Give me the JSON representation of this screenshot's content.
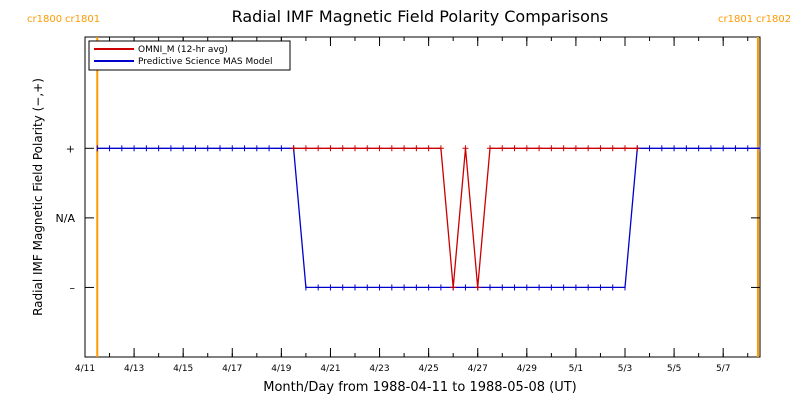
{
  "chart_data": {
    "type": "line",
    "title": "Radial IMF Magnetic Field Polarity Comparisons",
    "xlabel": "Month/Day from 1988-04-11 to 1988-05-08 (UT)",
    "ylabel": "Radial IMF Magnetic Field Polarity (−,+)",
    "xlim": [
      "1988-04-11T00:00",
      "1988-05-08T12:00"
    ],
    "x_tick_labels": [
      "4/11",
      "4/13",
      "4/15",
      "4/17",
      "4/19",
      "4/21",
      "4/23",
      "4/25",
      "4/27",
      "4/29",
      "5/1",
      "5/3",
      "5/5",
      "5/7"
    ],
    "x_tick_dates": [
      "1988-04-11",
      "1988-04-13",
      "1988-04-15",
      "1988-04-17",
      "1988-04-19",
      "1988-04-21",
      "1988-04-23",
      "1988-04-25",
      "1988-04-27",
      "1988-04-29",
      "1988-05-01",
      "1988-05-03",
      "1988-05-05",
      "1988-05-07"
    ],
    "y_categories": [
      "−",
      "N/A",
      "+"
    ],
    "y_tick_labels": [
      "–",
      "N/A",
      "+"
    ],
    "y_values_map": {
      "-": -1,
      "N/A": 0,
      "+": 1
    },
    "ylim": [
      -2,
      2.6
    ],
    "legend": {
      "placement": "top-left",
      "entries": [
        {
          "label": "OMNI_M (12-hr avg)",
          "color": "#cc0000"
        },
        {
          "label": "Predictive Science MAS Model",
          "color": "#0000cc"
        }
      ]
    },
    "carrington_markers": {
      "color": "#ff9900",
      "lines": [
        "1988-04-11T12:00",
        "1988-05-08T10:00"
      ],
      "left_labels": [
        "cr1800",
        "cr1801"
      ],
      "right_labels": [
        "cr1801",
        "cr1802"
      ]
    },
    "series": [
      {
        "name": "Predictive Science MAS Model",
        "color": "#0000cc",
        "marker": "tick",
        "points": [
          {
            "x": "1988-04-11T12:00",
            "y": 1
          },
          {
            "x": "1988-04-19T12:00",
            "y": 1
          },
          {
            "x": "1988-04-20T00:00",
            "y": -1
          },
          {
            "x": "1988-05-03T00:00",
            "y": -1
          },
          {
            "x": "1988-05-03T12:00",
            "y": 1
          },
          {
            "x": "1988-05-08T12:00",
            "y": 1
          }
        ]
      },
      {
        "name": "OMNI_M (12-hr avg)",
        "color": "#cc0000",
        "marker": "plus",
        "points": [
          {
            "x": "1988-04-19T12:00",
            "y": 1
          },
          {
            "x": "1988-04-20T00:00",
            "y": 1
          },
          {
            "x": "1988-04-20T12:00",
            "y": 1
          },
          {
            "x": "1988-04-21T00:00",
            "y": 1
          },
          {
            "x": "1988-04-21T12:00",
            "y": 1
          },
          {
            "x": "1988-04-22T00:00",
            "y": 1
          },
          {
            "x": "1988-04-22T12:00",
            "y": 1
          },
          {
            "x": "1988-04-23T00:00",
            "y": 1
          },
          {
            "x": "1988-04-23T12:00",
            "y": 1
          },
          {
            "x": "1988-04-24T00:00",
            "y": 1
          },
          {
            "x": "1988-04-24T12:00",
            "y": 1
          },
          {
            "x": "1988-04-25T00:00",
            "y": 1
          },
          {
            "x": "1988-04-25T12:00",
            "y": 1
          },
          {
            "x": "1988-04-26T00:00",
            "y": -1
          },
          {
            "x": "1988-04-26T12:00",
            "y": 1
          },
          {
            "x": "1988-04-27T00:00",
            "y": -1
          },
          {
            "x": "1988-04-27T12:00",
            "y": 1
          },
          {
            "x": "1988-04-28T00:00",
            "y": 1
          },
          {
            "x": "1988-04-28T12:00",
            "y": 1
          },
          {
            "x": "1988-04-29T00:00",
            "y": 1
          },
          {
            "x": "1988-04-29T12:00",
            "y": 1
          },
          {
            "x": "1988-04-30T00:00",
            "y": 1
          },
          {
            "x": "1988-04-30T12:00",
            "y": 1
          },
          {
            "x": "1988-05-01T00:00",
            "y": 1
          },
          {
            "x": "1988-05-01T12:00",
            "y": 1
          },
          {
            "x": "1988-05-02T00:00",
            "y": 1
          },
          {
            "x": "1988-05-02T12:00",
            "y": 1
          },
          {
            "x": "1988-05-03T00:00",
            "y": 1
          },
          {
            "x": "1988-05-03T12:00",
            "y": 1
          }
        ]
      }
    ]
  }
}
